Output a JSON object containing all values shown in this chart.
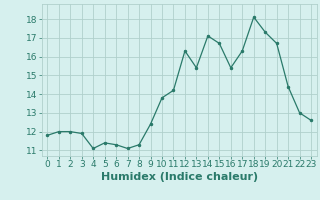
{
  "x": [
    0,
    1,
    2,
    3,
    4,
    5,
    6,
    7,
    8,
    9,
    10,
    11,
    12,
    13,
    14,
    15,
    16,
    17,
    18,
    19,
    20,
    21,
    22,
    23
  ],
  "y": [
    11.8,
    12.0,
    12.0,
    11.9,
    11.1,
    11.4,
    11.3,
    11.1,
    11.3,
    12.4,
    13.8,
    14.2,
    16.3,
    15.4,
    17.1,
    16.7,
    15.4,
    16.3,
    18.1,
    17.3,
    16.7,
    14.4,
    13.0,
    12.6
  ],
  "xlabel": "Humidex (Indice chaleur)",
  "ylim": [
    10.7,
    18.8
  ],
  "xlim": [
    -0.5,
    23.5
  ],
  "yticks": [
    11,
    12,
    13,
    14,
    15,
    16,
    17,
    18
  ],
  "xticks": [
    0,
    1,
    2,
    3,
    4,
    5,
    6,
    7,
    8,
    9,
    10,
    11,
    12,
    13,
    14,
    15,
    16,
    17,
    18,
    19,
    20,
    21,
    22,
    23
  ],
  "line_color": "#2a7a6a",
  "marker_color": "#2a7a6a",
  "bg_color": "#d6f0ee",
  "grid_color": "#b0d0cc",
  "xlabel_fontsize": 8,
  "tick_fontsize": 6.5
}
